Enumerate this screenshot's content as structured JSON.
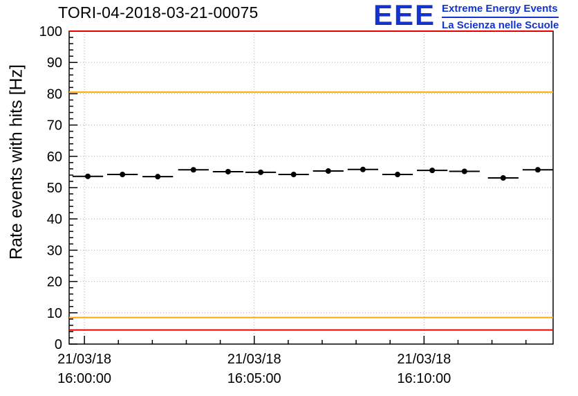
{
  "logo": {
    "acronym": "EEE",
    "line1": "Extreme Energy Events",
    "line2": "La Scienza nelle Scuole",
    "color": "#1333cc"
  },
  "chart_data": {
    "type": "scatter",
    "title": "TORI-04-2018-03-21-00075",
    "ylabel": "Rate events with hits [Hz]",
    "xlabel": "",
    "grid": true,
    "legend": "none",
    "colors": {
      "marker": "#000000",
      "grid": "#aaaaaa",
      "frame": "#000000",
      "alarm_line": "#e60000",
      "warning_line": "#ffaa00"
    },
    "y_axis": {
      "range": [
        0,
        100
      ],
      "major_step": 10,
      "minor_step": 2,
      "tick_labels": [
        "0",
        "10",
        "20",
        "30",
        "40",
        "50",
        "60",
        "70",
        "80",
        "90",
        "100"
      ]
    },
    "x_axis": {
      "range_min": [
        -0.45,
        13.8
      ],
      "minor_tick_step_min": 1,
      "major_ticks": [
        {
          "offset_min": 0,
          "line1": "21/03/18",
          "line2": "16:00:00"
        },
        {
          "offset_min": 5,
          "line1": "21/03/18",
          "line2": "16:05:00"
        },
        {
          "offset_min": 10,
          "line1": "21/03/18",
          "line2": "16:10:00"
        }
      ]
    },
    "reference_lines": [
      {
        "y": 100.0,
        "color": "#e60000"
      },
      {
        "y": 80.5,
        "color": "#ffaa00"
      },
      {
        "y": 8.5,
        "color": "#ffaa00"
      },
      {
        "y": 4.5,
        "color": "#e60000"
      }
    ],
    "series": [
      {
        "name": "rate-events-with-hits",
        "marker": "filled-circle",
        "color": "#000000",
        "x_half_width_min": 0.45,
        "points": [
          {
            "t_min": 0.1,
            "rate_hz": 53.6
          },
          {
            "t_min": 1.12,
            "rate_hz": 54.2
          },
          {
            "t_min": 2.16,
            "rate_hz": 53.5
          },
          {
            "t_min": 3.21,
            "rate_hz": 55.7
          },
          {
            "t_min": 4.23,
            "rate_hz": 55.1
          },
          {
            "t_min": 5.19,
            "rate_hz": 54.9
          },
          {
            "t_min": 6.16,
            "rate_hz": 54.2
          },
          {
            "t_min": 7.18,
            "rate_hz": 55.3
          },
          {
            "t_min": 8.2,
            "rate_hz": 55.8
          },
          {
            "t_min": 9.22,
            "rate_hz": 54.2
          },
          {
            "t_min": 10.24,
            "rate_hz": 55.5
          },
          {
            "t_min": 11.19,
            "rate_hz": 55.2
          },
          {
            "t_min": 12.33,
            "rate_hz": 53.1
          },
          {
            "t_min": 13.35,
            "rate_hz": 55.7
          }
        ]
      }
    ]
  }
}
